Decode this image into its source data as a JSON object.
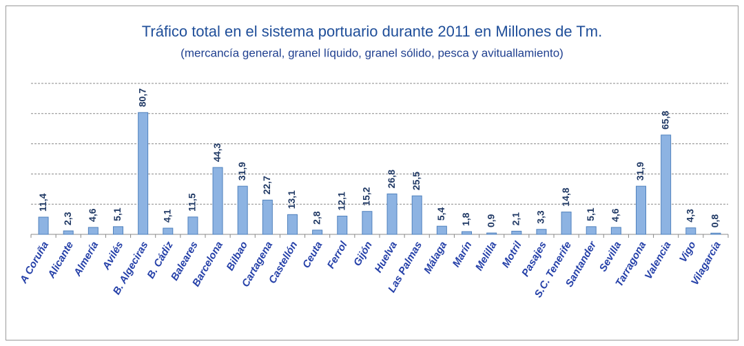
{
  "chart_data": {
    "type": "bar",
    "title": "Tráfico total en el sistema portuario durante 2011 en Millones de Tm.",
    "subtitle": "(mercancía general, granel líquido, granel sólido, pesca y avituallamiento)",
    "categories": [
      "A Coruña",
      "Alicante",
      "Almería",
      "Avilés",
      "B. Algeciras",
      "B. Cádiz",
      "Baleares",
      "Barcelona",
      "Bilbao",
      "Cartagena",
      "Castellón",
      "Ceuta",
      "Ferrol",
      "Gijón",
      "Huelva",
      "Las Palmas",
      "Málaga",
      "Marín",
      "Melilla",
      "Motril",
      "Pasajes",
      "S.C. Tenerife",
      "Santander",
      "Sevilla",
      "Tarragona",
      "Valencia",
      "Vigo",
      "Vilagarcía"
    ],
    "values": [
      11.4,
      2.3,
      4.6,
      5.1,
      80.7,
      4.1,
      11.5,
      44.3,
      31.9,
      22.7,
      13.1,
      2.8,
      12.1,
      15.2,
      26.8,
      25.5,
      5.4,
      1.8,
      0.9,
      2.1,
      3.3,
      14.8,
      5.1,
      4.6,
      31.9,
      65.8,
      4.3,
      0.8
    ],
    "value_labels": [
      "11,4",
      "2,3",
      "4,6",
      "5,1",
      "80,7",
      "4,1",
      "11,5",
      "44,3",
      "31,9",
      "22,7",
      "13,1",
      "2,8",
      "12,1",
      "15,2",
      "26,8",
      "25,5",
      "5,4",
      "1,8",
      "0,9",
      "2,1",
      "3,3",
      "14,8",
      "5,1",
      "4,6",
      "31,9",
      "65,8",
      "4,3",
      "0,8"
    ],
    "color": "#8db3e2",
    "ylim": [
      0,
      100
    ],
    "yticks": [
      0,
      20,
      40,
      60,
      80,
      100
    ],
    "grid": true
  }
}
